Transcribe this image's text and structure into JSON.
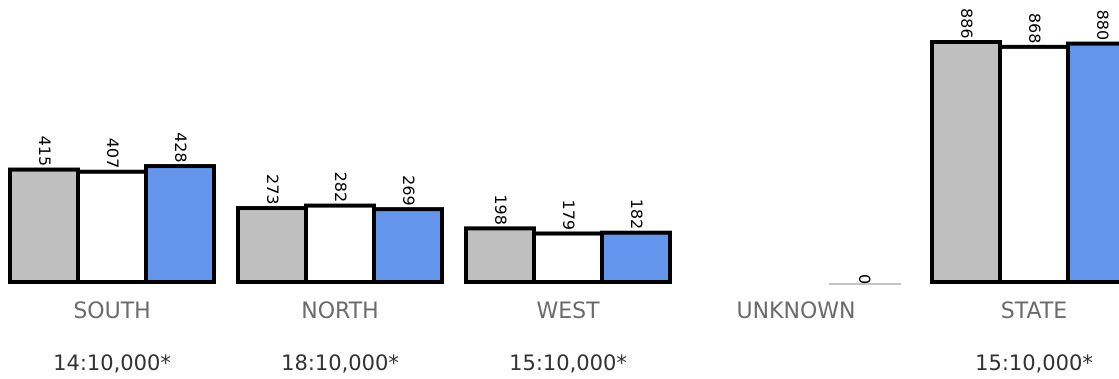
{
  "chart_data": {
    "type": "bar",
    "title": "",
    "xlabel": "",
    "ylabel": "",
    "categories": [
      "SOUTH",
      "NORTH",
      "WEST",
      "UNKNOWN",
      "STATE"
    ],
    "ratios": [
      "14:10,000*",
      "18:10,000*",
      "15:10,000*",
      "",
      "15:10,000*"
    ],
    "series": [
      {
        "color": "#bfbfbf",
        "values": [
          415,
          273,
          198,
          0,
          886
        ]
      },
      {
        "color": "#ffffff",
        "values": [
          407,
          282,
          179,
          0,
          868
        ]
      },
      {
        "color": "#6495ed",
        "values": [
          428,
          269,
          182,
          0,
          880
        ]
      }
    ],
    "ylim": [
      0,
      886
    ],
    "grid": false,
    "legend": "none"
  }
}
